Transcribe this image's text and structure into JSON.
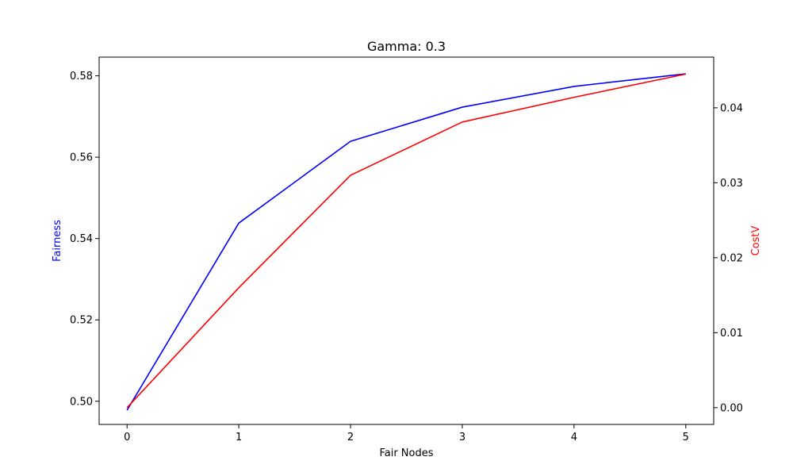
{
  "chart_data": {
    "type": "line",
    "title": "Gamma: 0.3",
    "xlabel": "Fair Nodes",
    "x": [
      0,
      1,
      2,
      3,
      4,
      5
    ],
    "xlim": [
      -0.25,
      5.25
    ],
    "xticks": [
      "0",
      "1",
      "2",
      "3",
      "4",
      "5"
    ],
    "grid": false,
    "legend": "none",
    "axes": {
      "left": {
        "label": "Fairness",
        "color": "#0000ff",
        "ylim": [
          0.4943,
          0.5846
        ],
        "ticks": [
          0.5,
          0.52,
          0.54,
          0.56,
          0.58
        ],
        "tick_labels": [
          "0.50",
          "0.52",
          "0.54",
          "0.56",
          "0.58"
        ]
      },
      "right": {
        "label": "CostV",
        "color": "#ff0000",
        "ylim": [
          -0.00224,
          0.04676
        ],
        "ticks": [
          0.0,
          0.01,
          0.02,
          0.03,
          0.04
        ],
        "tick_labels": [
          "0.00",
          "0.01",
          "0.02",
          "0.03",
          "0.04"
        ]
      }
    },
    "series": [
      {
        "name": "Fairness",
        "axis": "left",
        "color": "#0000ff",
        "values": [
          0.4978,
          0.5438,
          0.5639,
          0.5723,
          0.5774,
          0.5805
        ]
      },
      {
        "name": "CostV",
        "axis": "right",
        "color": "#ff0000",
        "values": [
          0.0,
          0.016,
          0.031,
          0.0381,
          0.0414,
          0.0445
        ]
      }
    ]
  }
}
